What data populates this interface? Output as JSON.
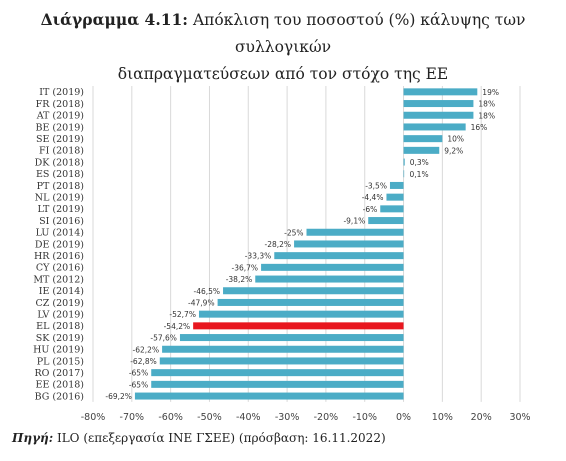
{
  "title": {
    "lead": "Διάγραμμα 4.11:",
    "line1_rest": " Απόκλιση του ποσοστού (%) κάλυψης των συλλογικών",
    "line2": "διαπραγματεύσεων από τον στόχο της ΕΕ"
  },
  "source": {
    "lead": "Πηγή:",
    "text": " ILO (επεξεργασία ΙΝΕ ΓΣΕΕ) (πρόσβαση: 16.11.2022)"
  },
  "chart_data": {
    "type": "bar",
    "orientation": "horizontal",
    "categories": [
      "IT (2019)",
      "FR (2018)",
      "AT (2019)",
      "BE (2019)",
      "SE (2019)",
      "FI (2018)",
      "DK (2018)",
      "ES (2018)",
      "PT (2018)",
      "NL (2019)",
      "LT (2019)",
      "SI (2016)",
      "LU (2014)",
      "DE (2019)",
      "HR (2016)",
      "CY (2016)",
      "MT (2012)",
      "IE (2014)",
      "CZ (2019)",
      "LV (2019)",
      "EL (2018)",
      "SK (2019)",
      "HU (2019)",
      "PL (2015)",
      "RO (2017)",
      "EE (2018)",
      "BG (2016)"
    ],
    "values": [
      19,
      18,
      18,
      16,
      10,
      9.2,
      0.3,
      0.1,
      -3.5,
      -4.4,
      -6,
      -9.1,
      -25,
      -28.2,
      -33.3,
      -36.7,
      -38.2,
      -46.5,
      -47.9,
      -52.7,
      -54.2,
      -57.6,
      -62.2,
      -62.8,
      -65,
      -65,
      -69.2
    ],
    "value_labels": [
      "19%",
      "18%",
      "18%",
      "16%",
      "10%",
      "9,2%",
      "0,3%",
      "0,1%",
      "-3,5%",
      "-4,4%",
      "-6%",
      "-9,1%",
      "-25%",
      "-28,2%",
      "-33,3%",
      "-36,7%",
      "-38,2%",
      "-46,5%",
      "-47,9%",
      "-52,7%",
      "-54,2%",
      "-57,6%",
      "-62,2%",
      "-62,8%",
      "-65%",
      "-65%",
      "-69,2%"
    ],
    "highlight": "EL (2018)",
    "xlim": [
      -80,
      30
    ],
    "xticks": [
      -80,
      -70,
      -60,
      -50,
      -40,
      -30,
      -20,
      -10,
      0,
      10,
      20,
      30
    ],
    "xtick_labels": [
      "-80%",
      "-70%",
      "-60%",
      "-50%",
      "-40%",
      "-30%",
      "-20%",
      "-10%",
      "0%",
      "10%",
      "20%",
      "30%"
    ],
    "grid": true,
    "colors": {
      "bar": "#4bacc6",
      "highlight": "#e8171f",
      "grid": "#d9d9d9"
    }
  }
}
